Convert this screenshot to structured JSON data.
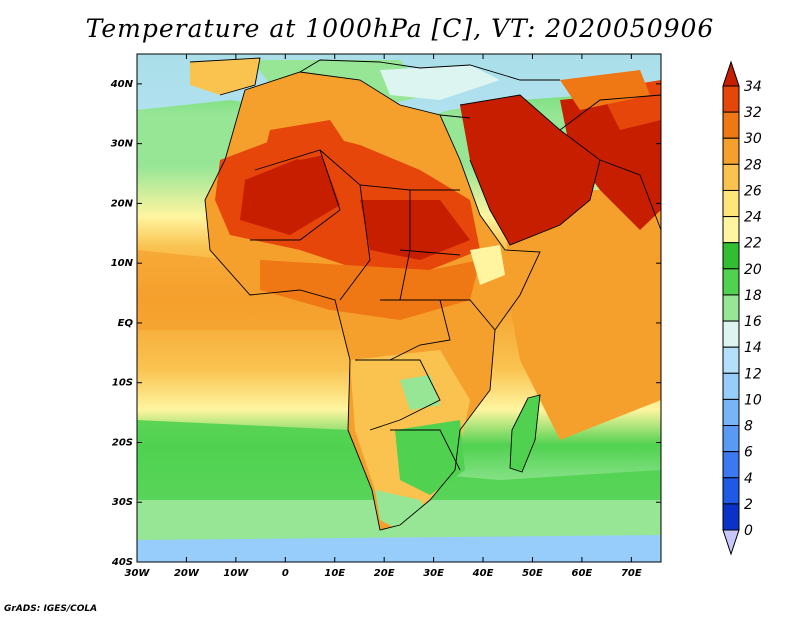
{
  "title": "Temperature at 1000hPa [C], VT: 2020050906",
  "credit": "GrADS: IGES/COLA",
  "map": {
    "lon_range": [
      -30,
      76
    ],
    "lat_range": [
      -40,
      45
    ],
    "lon_ticks": [
      {
        "value": -30,
        "label": "30W"
      },
      {
        "value": -20,
        "label": "20W"
      },
      {
        "value": -10,
        "label": "10W"
      },
      {
        "value": 0,
        "label": "0"
      },
      {
        "value": 10,
        "label": "10E"
      },
      {
        "value": 20,
        "label": "20E"
      },
      {
        "value": 30,
        "label": "30E"
      },
      {
        "value": 40,
        "label": "40E"
      },
      {
        "value": 50,
        "label": "50E"
      },
      {
        "value": 60,
        "label": "60E"
      },
      {
        "value": 70,
        "label": "70E"
      }
    ],
    "lat_ticks": [
      {
        "value": 40,
        "label": "40N"
      },
      {
        "value": 30,
        "label": "30N"
      },
      {
        "value": 20,
        "label": "20N"
      },
      {
        "value": 10,
        "label": "10N"
      },
      {
        "value": 0,
        "label": "EQ"
      },
      {
        "value": -10,
        "label": "10S"
      },
      {
        "value": -20,
        "label": "20S"
      },
      {
        "value": -30,
        "label": "30S"
      },
      {
        "value": -40,
        "label": "40S"
      }
    ]
  },
  "colorbar": {
    "levels": [
      0,
      2,
      4,
      6,
      8,
      10,
      12,
      14,
      16,
      18,
      20,
      22,
      24,
      26,
      28,
      30,
      32,
      34
    ],
    "colors": [
      "#000a6e",
      "#0a32c8",
      "#1e5ae6",
      "#3c78f0",
      "#5a9af5",
      "#78b4f8",
      "#96cdfa",
      "#b4e0fa",
      "#dcf5f0",
      "#96e696",
      "#50d250",
      "#32be32",
      "#fff5a0",
      "#ffe678",
      "#fac350",
      "#f5a02d",
      "#f07814",
      "#e6460a",
      "#c81e00"
    ],
    "low_color": "#c8c8ff",
    "high_color": "#c81e00"
  }
}
